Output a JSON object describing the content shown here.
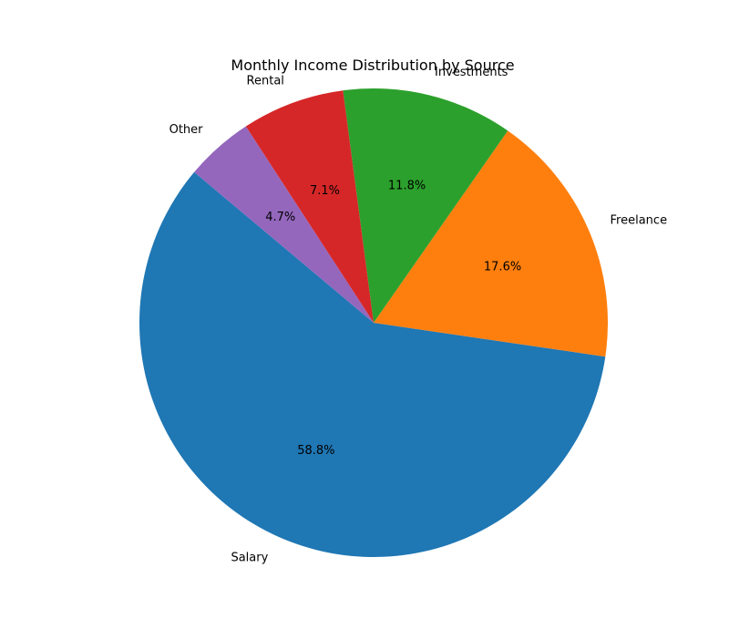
{
  "chart_data": {
    "type": "pie",
    "title": "Monthly Income Distribution by Source",
    "slices": [
      {
        "label": "Salary",
        "value": 58.8,
        "pct_label": "58.8%",
        "color": "#1f77b4"
      },
      {
        "label": "Freelance",
        "value": 17.6,
        "pct_label": "17.6%",
        "color": "#ff7f0e"
      },
      {
        "label": "Investments",
        "value": 11.8,
        "pct_label": "11.8%",
        "color": "#2ca02c"
      },
      {
        "label": "Rental",
        "value": 7.1,
        "pct_label": "7.1%",
        "color": "#d62728"
      },
      {
        "label": "Other",
        "value": 4.7,
        "pct_label": "4.7%",
        "color": "#9467bd"
      }
    ],
    "start_angle": 140,
    "direction": "counterclockwise"
  }
}
